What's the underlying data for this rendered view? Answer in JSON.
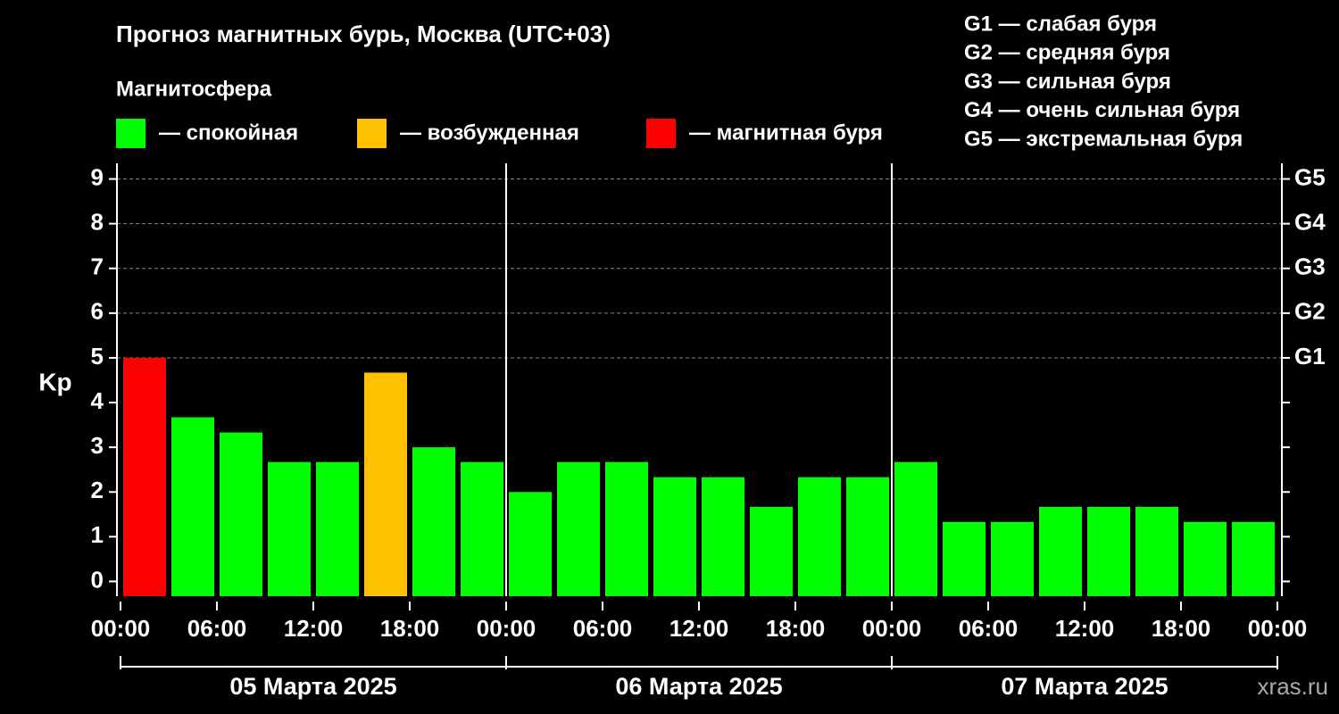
{
  "chart_data": {
    "type": "bar",
    "title": "Прогноз магнитных бурь, Москва (UTC+03)",
    "subtitle": "Магнитосфера",
    "legend": [
      {
        "name": "— спокойная",
        "color": "#00ff00"
      },
      {
        "name": "— возбужденная",
        "color": "#ffc000"
      },
      {
        "name": "— магнитная буря",
        "color": "#ff0000"
      }
    ],
    "scale_notes": [
      "G1 — слабая буря",
      "G2 — средняя буря",
      "G3 — сильная буря",
      "G4 — очень сильная буря",
      "G5 — экстремальная буря"
    ],
    "ylabel": "Kp",
    "x": [
      0,
      3,
      6,
      9,
      12,
      15,
      18,
      21,
      24,
      27,
      30,
      33,
      36,
      39,
      42,
      45,
      48,
      51,
      54,
      57,
      60,
      63,
      66,
      69
    ],
    "values": [
      5.0,
      3.67,
      3.33,
      2.67,
      2.67,
      4.67,
      3.0,
      2.67,
      2.0,
      2.67,
      2.67,
      2.33,
      2.33,
      1.67,
      2.33,
      2.33,
      2.67,
      1.33,
      1.33,
      1.67,
      1.67,
      1.67,
      1.33,
      1.33
    ],
    "colors": [
      "#ff0000",
      "#00ff00",
      "#00ff00",
      "#00ff00",
      "#00ff00",
      "#ffc000",
      "#00ff00",
      "#00ff00",
      "#00ff00",
      "#00ff00",
      "#00ff00",
      "#00ff00",
      "#00ff00",
      "#00ff00",
      "#00ff00",
      "#00ff00",
      "#00ff00",
      "#00ff00",
      "#00ff00",
      "#00ff00",
      "#00ff00",
      "#00ff00",
      "#00ff00",
      "#00ff00"
    ],
    "xlim": [
      0,
      72
    ],
    "xticks": [
      {
        "value": 0,
        "label": "00:00"
      },
      {
        "value": 6,
        "label": "06:00"
      },
      {
        "value": 12,
        "label": "12:00"
      },
      {
        "value": 18,
        "label": "18:00"
      },
      {
        "value": 24,
        "label": "00:00"
      },
      {
        "value": 30,
        "label": "06:00"
      },
      {
        "value": 36,
        "label": "12:00"
      },
      {
        "value": 42,
        "label": "18:00"
      },
      {
        "value": 48,
        "label": "00:00"
      },
      {
        "value": 54,
        "label": "06:00"
      },
      {
        "value": 60,
        "label": "12:00"
      },
      {
        "value": 66,
        "label": "18:00"
      },
      {
        "value": 72,
        "label": "00:00"
      }
    ],
    "days": [
      "05 Марта 2025",
      "06 Марта 2025",
      "07 Марта 2025"
    ],
    "ylim": [
      -0.33,
      9.35
    ],
    "yticks": [
      0,
      1,
      2,
      3,
      4,
      5,
      6,
      7,
      8,
      9
    ],
    "y2ticks": [
      {
        "value": 5,
        "label": "G1"
      },
      {
        "value": 6,
        "label": "G2"
      },
      {
        "value": 7,
        "label": "G3"
      },
      {
        "value": 8,
        "label": "G4"
      },
      {
        "value": 9,
        "label": "G5"
      }
    ],
    "grid": true,
    "watermark": "xras.ru"
  }
}
